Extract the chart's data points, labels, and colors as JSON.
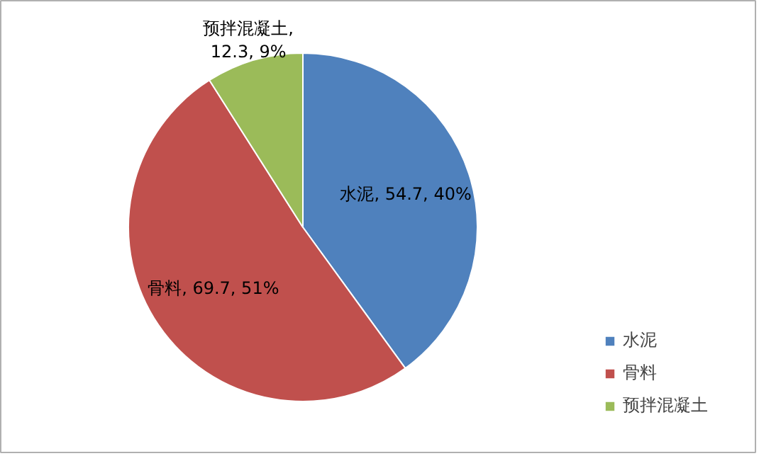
{
  "chart_data": {
    "type": "pie",
    "categories": [
      "水泥",
      "骨料",
      "预拌混凝土"
    ],
    "values": [
      54.7,
      69.7,
      12.3
    ],
    "colors": [
      "#4f81bd",
      "#c0504d",
      "#9bbb59"
    ],
    "value_labels": [
      "水泥, 54.7, 40%",
      "骨料, 69.7, 51%",
      "预拌混凝土, 12.3, 9%"
    ],
    "legend": "right"
  }
}
